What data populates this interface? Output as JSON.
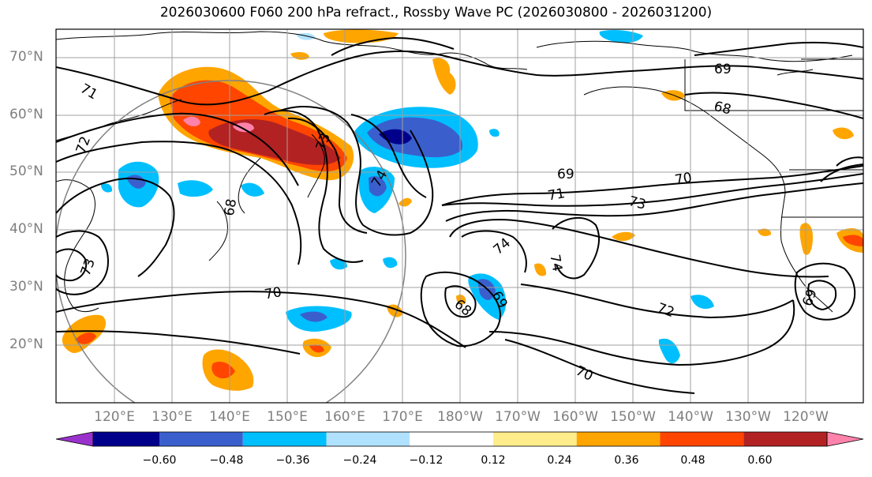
{
  "title": "2026030600 F060 200 hPa refract., Rossby Wave PC (2026030800 - 2026031200)",
  "lat_labels": [
    "70°N",
    "60°N",
    "50°N",
    "40°N",
    "30°N",
    "20°N"
  ],
  "lon_labels": [
    "120°E",
    "130°E",
    "140°E",
    "150°E",
    "160°E",
    "170°E",
    "180°W",
    "170°W",
    "160°W",
    "150°W",
    "140°W",
    "130°W",
    "120°W"
  ],
  "colorbar": {
    "colors": [
      "#9932cc",
      "#00008b",
      "#3a5fcd",
      "#00bfff",
      "#b0e2ff",
      "#ffffff",
      "#ffec8b",
      "#ffa500",
      "#ff4500",
      "#b22222",
      "#ff82ab"
    ],
    "tick_labels": [
      "−0.60",
      "−0.48",
      "−0.36",
      "−0.24",
      "−0.12",
      "0.12",
      "0.24",
      "0.36",
      "0.48",
      "0.60"
    ]
  },
  "contour_labels": [
    "71",
    "72",
    "73",
    "68",
    "69",
    "70",
    "71",
    "73",
    "74",
    "74",
    "69",
    "68",
    "69",
    "68",
    "70",
    "72",
    "70",
    "73",
    "74",
    "69"
  ],
  "legend_colors": {
    "contour": "#000000",
    "grid": "#a0a0a0",
    "coast": "#000000"
  }
}
